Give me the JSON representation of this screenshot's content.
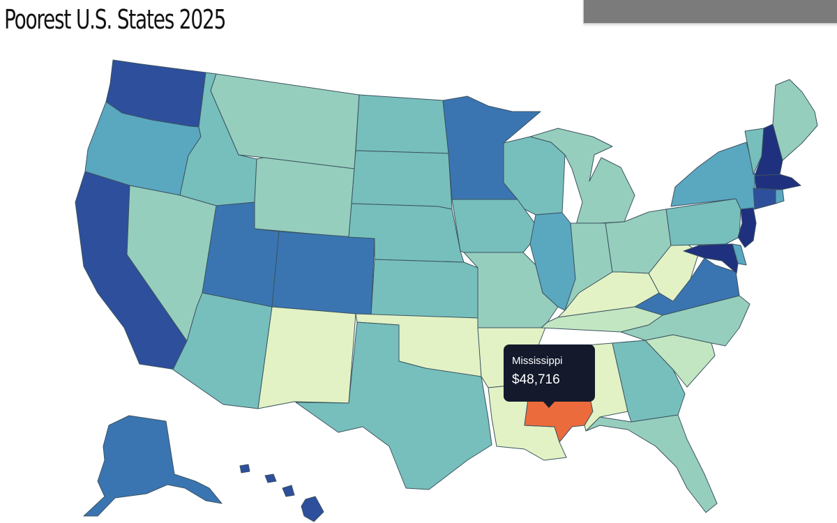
{
  "title": "Poorest U.S. States 2025",
  "palette": {
    "c1": "#e2f2c4",
    "c2": "#c2e6c1",
    "c3": "#96cebd",
    "c4": "#77bfbc",
    "c5": "#5aa7c0",
    "c6": "#3a75b2",
    "c7": "#2d4f9c",
    "c8": "#1f307e",
    "highlight": "#ec6b3c"
  },
  "states": [
    {
      "name": "Washington",
      "color": "c7"
    },
    {
      "name": "Oregon",
      "color": "c5"
    },
    {
      "name": "California",
      "color": "c7"
    },
    {
      "name": "Idaho",
      "color": "c4"
    },
    {
      "name": "Nevada",
      "color": "c3"
    },
    {
      "name": "Montana",
      "color": "c3"
    },
    {
      "name": "Wyoming",
      "color": "c3"
    },
    {
      "name": "Utah",
      "color": "c6"
    },
    {
      "name": "Arizona",
      "color": "c4"
    },
    {
      "name": "Colorado",
      "color": "c6"
    },
    {
      "name": "New Mexico",
      "color": "c1"
    },
    {
      "name": "North Dakota",
      "color": "c4"
    },
    {
      "name": "South Dakota",
      "color": "c4"
    },
    {
      "name": "Nebraska",
      "color": "c4"
    },
    {
      "name": "Kansas",
      "color": "c4"
    },
    {
      "name": "Oklahoma",
      "color": "c1"
    },
    {
      "name": "Texas",
      "color": "c4"
    },
    {
      "name": "Minnesota",
      "color": "c6"
    },
    {
      "name": "Iowa",
      "color": "c4"
    },
    {
      "name": "Missouri",
      "color": "c3"
    },
    {
      "name": "Arkansas",
      "color": "c1"
    },
    {
      "name": "Louisiana",
      "color": "c1"
    },
    {
      "name": "Wisconsin",
      "color": "c4"
    },
    {
      "name": "Illinois",
      "color": "c5"
    },
    {
      "name": "Michigan",
      "color": "c3"
    },
    {
      "name": "Indiana",
      "color": "c3"
    },
    {
      "name": "Ohio",
      "color": "c3"
    },
    {
      "name": "Kentucky",
      "color": "c1"
    },
    {
      "name": "Tennessee",
      "color": "c2"
    },
    {
      "name": "Mississippi",
      "color": "highlight"
    },
    {
      "name": "Alabama",
      "color": "c1"
    },
    {
      "name": "Georgia",
      "color": "c4"
    },
    {
      "name": "Florida",
      "color": "c3"
    },
    {
      "name": "South Carolina",
      "color": "c2"
    },
    {
      "name": "North Carolina",
      "color": "c3"
    },
    {
      "name": "Virginia",
      "color": "c6"
    },
    {
      "name": "West Virginia",
      "color": "c1"
    },
    {
      "name": "Pennsylvania",
      "color": "c4"
    },
    {
      "name": "New York",
      "color": "c5"
    },
    {
      "name": "Vermont",
      "color": "c4"
    },
    {
      "name": "New Hampshire",
      "color": "c8"
    },
    {
      "name": "Maine",
      "color": "c3"
    },
    {
      "name": "Massachusetts",
      "color": "c8"
    },
    {
      "name": "Connecticut",
      "color": "c7"
    },
    {
      "name": "Rhode Island",
      "color": "c5"
    },
    {
      "name": "New Jersey",
      "color": "c8"
    },
    {
      "name": "Delaware",
      "color": "c5"
    },
    {
      "name": "Maryland",
      "color": "c8"
    },
    {
      "name": "Alaska",
      "color": "c6"
    },
    {
      "name": "Hawaii",
      "color": "c7"
    }
  ],
  "tooltip": {
    "state": "Mississippi",
    "value": "$48,716"
  }
}
